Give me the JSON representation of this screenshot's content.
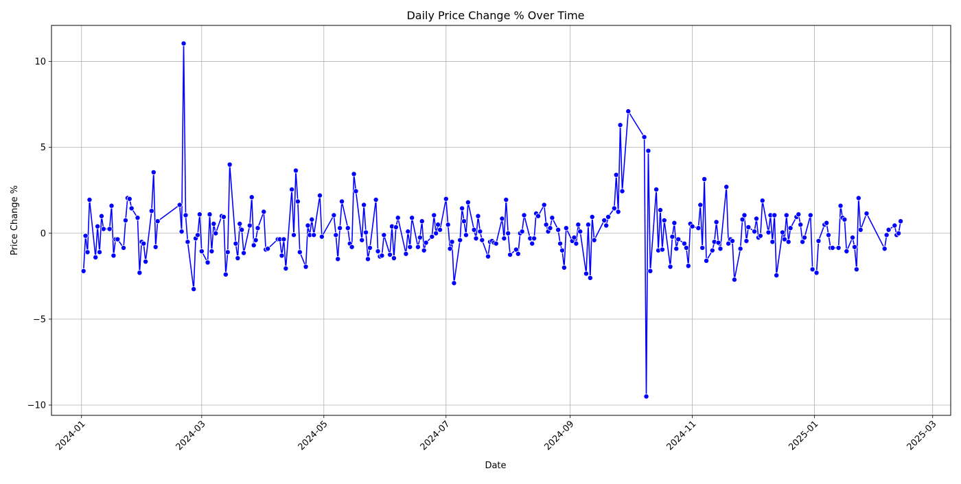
{
  "chart_data": {
    "type": "line",
    "title": "Daily Price Change % Over Time",
    "xlabel": "Date",
    "ylabel": "Price Change %",
    "xlim": [
      "2023-12-17",
      "2025-03-10"
    ],
    "ylim": [
      -10.6,
      12.1
    ],
    "x_ticks": [
      "2024-01",
      "2024-03",
      "2024-05",
      "2024-07",
      "2024-09",
      "2024-11",
      "2025-01",
      "2025-03"
    ],
    "x_tick_dates": [
      "2024-01-01",
      "2024-03-01",
      "2024-05-01",
      "2024-07-01",
      "2024-09-01",
      "2024-11-01",
      "2025-01-01",
      "2025-03-01"
    ],
    "y_ticks": [
      -10,
      -5,
      0,
      5,
      10
    ],
    "y_tick_labels": [
      "−10",
      "−5",
      "0",
      "5",
      "10"
    ],
    "grid": true,
    "line_color": "#0000ff",
    "series": [
      {
        "marker": "circle",
        "points": [
          [
            "2024-01-02",
            -2.2
          ],
          [
            "2024-01-03",
            -0.15
          ],
          [
            "2024-01-04",
            -1.1
          ],
          [
            "2024-01-05",
            1.95
          ],
          [
            "2024-01-08",
            -1.4
          ],
          [
            "2024-01-09",
            0.4
          ],
          [
            "2024-01-10",
            -1.1
          ],
          [
            "2024-01-11",
            1.0
          ],
          [
            "2024-01-12",
            0.25
          ],
          [
            "2024-01-15",
            0.25
          ],
          [
            "2024-01-16",
            1.6
          ],
          [
            "2024-01-17",
            -1.3
          ],
          [
            "2024-01-18",
            -0.35
          ],
          [
            "2024-01-19",
            -0.35
          ],
          [
            "2024-01-22",
            -0.85
          ],
          [
            "2024-01-23",
            0.75
          ],
          [
            "2024-01-24",
            2.05
          ],
          [
            "2024-01-25",
            2.0
          ],
          [
            "2024-01-26",
            1.45
          ],
          [
            "2024-01-29",
            0.9
          ],
          [
            "2024-01-30",
            -2.3
          ],
          [
            "2024-01-31",
            -0.5
          ],
          [
            "2024-02-01",
            -0.6
          ],
          [
            "2024-02-02",
            -1.65
          ],
          [
            "2024-02-05",
            1.3
          ],
          [
            "2024-02-06",
            3.55
          ],
          [
            "2024-02-07",
            -0.8
          ],
          [
            "2024-02-08",
            0.7
          ],
          [
            "2024-02-19",
            1.65
          ],
          [
            "2024-02-20",
            0.1
          ],
          [
            "2024-02-21",
            11.05
          ],
          [
            "2024-02-22",
            1.05
          ],
          [
            "2024-02-23",
            -0.5
          ],
          [
            "2024-02-26",
            -3.25
          ],
          [
            "2024-02-27",
            -0.3
          ],
          [
            "2024-02-28",
            -0.1
          ],
          [
            "2024-02-29",
            1.1
          ],
          [
            "2024-03-01",
            -1.05
          ],
          [
            "2024-03-04",
            -1.7
          ],
          [
            "2024-03-05",
            1.1
          ],
          [
            "2024-03-06",
            -1.05
          ],
          [
            "2024-03-07",
            0.55
          ],
          [
            "2024-03-08",
            0.0
          ],
          [
            "2024-03-11",
            1.0
          ],
          [
            "2024-03-12",
            0.95
          ],
          [
            "2024-03-13",
            -2.4
          ],
          [
            "2024-03-14",
            -1.1
          ],
          [
            "2024-03-15",
            4.0
          ],
          [
            "2024-03-18",
            -0.6
          ],
          [
            "2024-03-19",
            -1.45
          ],
          [
            "2024-03-20",
            0.55
          ],
          [
            "2024-03-21",
            0.2
          ],
          [
            "2024-03-22",
            -1.15
          ],
          [
            "2024-03-25",
            0.45
          ],
          [
            "2024-03-26",
            2.1
          ],
          [
            "2024-03-27",
            -0.7
          ],
          [
            "2024-03-28",
            -0.4
          ],
          [
            "2024-03-29",
            0.3
          ],
          [
            "2024-04-01",
            1.25
          ],
          [
            "2024-04-02",
            -0.95
          ],
          [
            "2024-04-03",
            -0.9
          ],
          [
            "2024-04-08",
            -0.35
          ],
          [
            "2024-04-09",
            -0.35
          ],
          [
            "2024-04-10",
            -1.3
          ],
          [
            "2024-04-11",
            -0.35
          ],
          [
            "2024-04-12",
            -2.05
          ],
          [
            "2024-04-15",
            2.55
          ],
          [
            "2024-04-16",
            -0.1
          ],
          [
            "2024-04-17",
            3.65
          ],
          [
            "2024-04-18",
            1.85
          ],
          [
            "2024-04-19",
            -1.1
          ],
          [
            "2024-04-22",
            -1.95
          ],
          [
            "2024-04-23",
            0.45
          ],
          [
            "2024-04-24",
            -0.1
          ],
          [
            "2024-04-25",
            0.8
          ],
          [
            "2024-04-26",
            -0.1
          ],
          [
            "2024-04-29",
            2.2
          ],
          [
            "2024-04-30",
            -0.2
          ],
          [
            "2024-05-06",
            1.05
          ],
          [
            "2024-05-07",
            -0.1
          ],
          [
            "2024-05-08",
            -1.5
          ],
          [
            "2024-05-09",
            0.3
          ],
          [
            "2024-05-10",
            1.85
          ],
          [
            "2024-05-13",
            0.3
          ],
          [
            "2024-05-14",
            -0.6
          ],
          [
            "2024-05-15",
            -0.8
          ],
          [
            "2024-05-16",
            3.45
          ],
          [
            "2024-05-17",
            2.45
          ],
          [
            "2024-05-20",
            -0.4
          ],
          [
            "2024-05-21",
            1.65
          ],
          [
            "2024-05-22",
            0.05
          ],
          [
            "2024-05-23",
            -1.5
          ],
          [
            "2024-05-24",
            -0.85
          ],
          [
            "2024-05-27",
            1.95
          ],
          [
            "2024-05-28",
            -1.05
          ],
          [
            "2024-05-29",
            -1.35
          ],
          [
            "2024-05-30",
            -1.3
          ],
          [
            "2024-05-31",
            -0.1
          ],
          [
            "2024-06-03",
            -1.25
          ],
          [
            "2024-06-04",
            0.4
          ],
          [
            "2024-06-05",
            -1.45
          ],
          [
            "2024-06-06",
            0.35
          ],
          [
            "2024-06-07",
            0.9
          ],
          [
            "2024-06-11",
            -1.2
          ],
          [
            "2024-06-12",
            0.1
          ],
          [
            "2024-06-13",
            -0.8
          ],
          [
            "2024-06-14",
            0.9
          ],
          [
            "2024-06-17",
            -0.8
          ],
          [
            "2024-06-18",
            -0.25
          ],
          [
            "2024-06-19",
            0.7
          ],
          [
            "2024-06-20",
            -1.0
          ],
          [
            "2024-06-21",
            -0.55
          ],
          [
            "2024-06-24",
            -0.2
          ],
          [
            "2024-06-25",
            1.05
          ],
          [
            "2024-06-26",
            0.0
          ],
          [
            "2024-06-27",
            0.5
          ],
          [
            "2024-06-28",
            0.2
          ],
          [
            "2024-07-01",
            2.0
          ],
          [
            "2024-07-02",
            0.5
          ],
          [
            "2024-07-03",
            -0.9
          ],
          [
            "2024-07-04",
            -0.5
          ],
          [
            "2024-07-05",
            -2.9
          ],
          [
            "2024-07-08",
            -0.4
          ],
          [
            "2024-07-09",
            1.45
          ],
          [
            "2024-07-10",
            0.7
          ],
          [
            "2024-07-11",
            -0.1
          ],
          [
            "2024-07-12",
            1.8
          ],
          [
            "2024-07-15",
            0.2
          ],
          [
            "2024-07-16",
            -0.3
          ],
          [
            "2024-07-17",
            1.0
          ],
          [
            "2024-07-18",
            0.1
          ],
          [
            "2024-07-19",
            -0.4
          ],
          [
            "2024-07-22",
            -1.35
          ],
          [
            "2024-07-23",
            -0.5
          ],
          [
            "2024-07-24",
            -0.45
          ],
          [
            "2024-07-25",
            -0.55
          ],
          [
            "2024-07-26",
            -0.6
          ],
          [
            "2024-07-29",
            0.85
          ],
          [
            "2024-07-30",
            -0.3
          ],
          [
            "2024-07-31",
            1.95
          ],
          [
            "2024-08-01",
            0.0
          ],
          [
            "2024-08-02",
            -1.25
          ],
          [
            "2024-08-05",
            -0.95
          ],
          [
            "2024-08-06",
            -1.2
          ],
          [
            "2024-08-07",
            0.0
          ],
          [
            "2024-08-08",
            0.1
          ],
          [
            "2024-08-09",
            1.05
          ],
          [
            "2024-08-12",
            -0.3
          ],
          [
            "2024-08-13",
            -0.6
          ],
          [
            "2024-08-14",
            -0.3
          ],
          [
            "2024-08-15",
            1.15
          ],
          [
            "2024-08-16",
            1.0
          ],
          [
            "2024-08-19",
            1.65
          ],
          [
            "2024-08-20",
            0.5
          ],
          [
            "2024-08-21",
            0.1
          ],
          [
            "2024-08-22",
            0.3
          ],
          [
            "2024-08-23",
            0.9
          ],
          [
            "2024-08-26",
            0.2
          ],
          [
            "2024-08-27",
            -0.6
          ],
          [
            "2024-08-28",
            -1.0
          ],
          [
            "2024-08-29",
            -2.0
          ],
          [
            "2024-08-30",
            0.3
          ],
          [
            "2024-09-02",
            -0.45
          ],
          [
            "2024-09-03",
            -0.25
          ],
          [
            "2024-09-04",
            -0.6
          ],
          [
            "2024-09-05",
            0.5
          ],
          [
            "2024-09-06",
            0.1
          ],
          [
            "2024-09-09",
            -2.35
          ],
          [
            "2024-09-10",
            0.5
          ],
          [
            "2024-09-11",
            -2.6
          ],
          [
            "2024-09-12",
            0.95
          ],
          [
            "2024-09-13",
            -0.4
          ],
          [
            "2024-09-18",
            0.75
          ],
          [
            "2024-09-19",
            0.45
          ],
          [
            "2024-09-20",
            0.95
          ],
          [
            "2024-09-23",
            1.45
          ],
          [
            "2024-09-24",
            3.4
          ],
          [
            "2024-09-25",
            1.25
          ],
          [
            "2024-09-26",
            6.3
          ],
          [
            "2024-09-27",
            2.45
          ],
          [
            "2024-09-30",
            7.1
          ],
          [
            "2024-10-08",
            5.6
          ],
          [
            "2024-10-09",
            -9.5
          ],
          [
            "2024-10-10",
            4.8
          ],
          [
            "2024-10-11",
            -2.2
          ],
          [
            "2024-10-14",
            2.55
          ],
          [
            "2024-10-15",
            -1.0
          ],
          [
            "2024-10-16",
            1.35
          ],
          [
            "2024-10-17",
            -0.95
          ],
          [
            "2024-10-18",
            0.75
          ],
          [
            "2024-10-21",
            -1.95
          ],
          [
            "2024-10-22",
            -0.2
          ],
          [
            "2024-10-23",
            0.6
          ],
          [
            "2024-10-24",
            -0.9
          ],
          [
            "2024-10-25",
            -0.35
          ],
          [
            "2024-10-28",
            -0.6
          ],
          [
            "2024-10-29",
            -0.85
          ],
          [
            "2024-10-30",
            -1.9
          ],
          [
            "2024-10-31",
            0.55
          ],
          [
            "2024-11-01",
            0.4
          ],
          [
            "2024-11-04",
            0.3
          ],
          [
            "2024-11-05",
            1.65
          ],
          [
            "2024-11-06",
            -0.85
          ],
          [
            "2024-11-07",
            3.15
          ],
          [
            "2024-11-08",
            -1.6
          ],
          [
            "2024-11-11",
            -1.0
          ],
          [
            "2024-11-12",
            -0.5
          ],
          [
            "2024-11-13",
            0.65
          ],
          [
            "2024-11-14",
            -0.55
          ],
          [
            "2024-11-15",
            -0.9
          ],
          [
            "2024-11-18",
            2.7
          ],
          [
            "2024-11-19",
            -0.6
          ],
          [
            "2024-11-20",
            -0.35
          ],
          [
            "2024-11-21",
            -0.45
          ],
          [
            "2024-11-22",
            -2.7
          ],
          [
            "2024-11-25",
            -0.9
          ],
          [
            "2024-11-26",
            0.8
          ],
          [
            "2024-11-27",
            1.05
          ],
          [
            "2024-11-28",
            -0.45
          ],
          [
            "2024-11-29",
            0.35
          ],
          [
            "2024-12-02",
            0.1
          ],
          [
            "2024-12-03",
            0.85
          ],
          [
            "2024-12-04",
            -0.25
          ],
          [
            "2024-12-05",
            -0.15
          ],
          [
            "2024-12-06",
            1.9
          ],
          [
            "2024-12-09",
            0.05
          ],
          [
            "2024-12-10",
            1.05
          ],
          [
            "2024-12-11",
            -0.5
          ],
          [
            "2024-12-12",
            1.05
          ],
          [
            "2024-12-13",
            -2.45
          ],
          [
            "2024-12-16",
            0.05
          ],
          [
            "2024-12-17",
            -0.35
          ],
          [
            "2024-12-18",
            1.05
          ],
          [
            "2024-12-19",
            -0.5
          ],
          [
            "2024-12-20",
            0.3
          ],
          [
            "2024-12-23",
            0.95
          ],
          [
            "2024-12-24",
            1.1
          ],
          [
            "2024-12-25",
            0.5
          ],
          [
            "2024-12-26",
            -0.5
          ],
          [
            "2024-12-27",
            -0.25
          ],
          [
            "2024-12-30",
            1.05
          ],
          [
            "2024-12-31",
            -2.1
          ],
          [
            "2025-01-02",
            -2.3
          ],
          [
            "2025-01-03",
            -0.45
          ],
          [
            "2025-01-06",
            0.5
          ],
          [
            "2025-01-07",
            0.6
          ],
          [
            "2025-01-08",
            -0.1
          ],
          [
            "2025-01-09",
            -0.85
          ],
          [
            "2025-01-10",
            -0.85
          ],
          [
            "2025-01-13",
            -0.85
          ],
          [
            "2025-01-14",
            1.6
          ],
          [
            "2025-01-15",
            0.9
          ],
          [
            "2025-01-16",
            0.8
          ],
          [
            "2025-01-17",
            -1.05
          ],
          [
            "2025-01-20",
            -0.25
          ],
          [
            "2025-01-21",
            -0.8
          ],
          [
            "2025-01-22",
            -2.1
          ],
          [
            "2025-01-23",
            2.05
          ],
          [
            "2025-01-24",
            0.2
          ],
          [
            "2025-01-27",
            1.15
          ],
          [
            "2025-02-05",
            -0.9
          ],
          [
            "2025-02-06",
            -0.1
          ],
          [
            "2025-02-07",
            0.2
          ],
          [
            "2025-02-10",
            0.45
          ],
          [
            "2025-02-11",
            -0.1
          ],
          [
            "2025-02-12",
            0.0
          ],
          [
            "2025-02-13",
            0.7
          ]
        ]
      }
    ]
  }
}
